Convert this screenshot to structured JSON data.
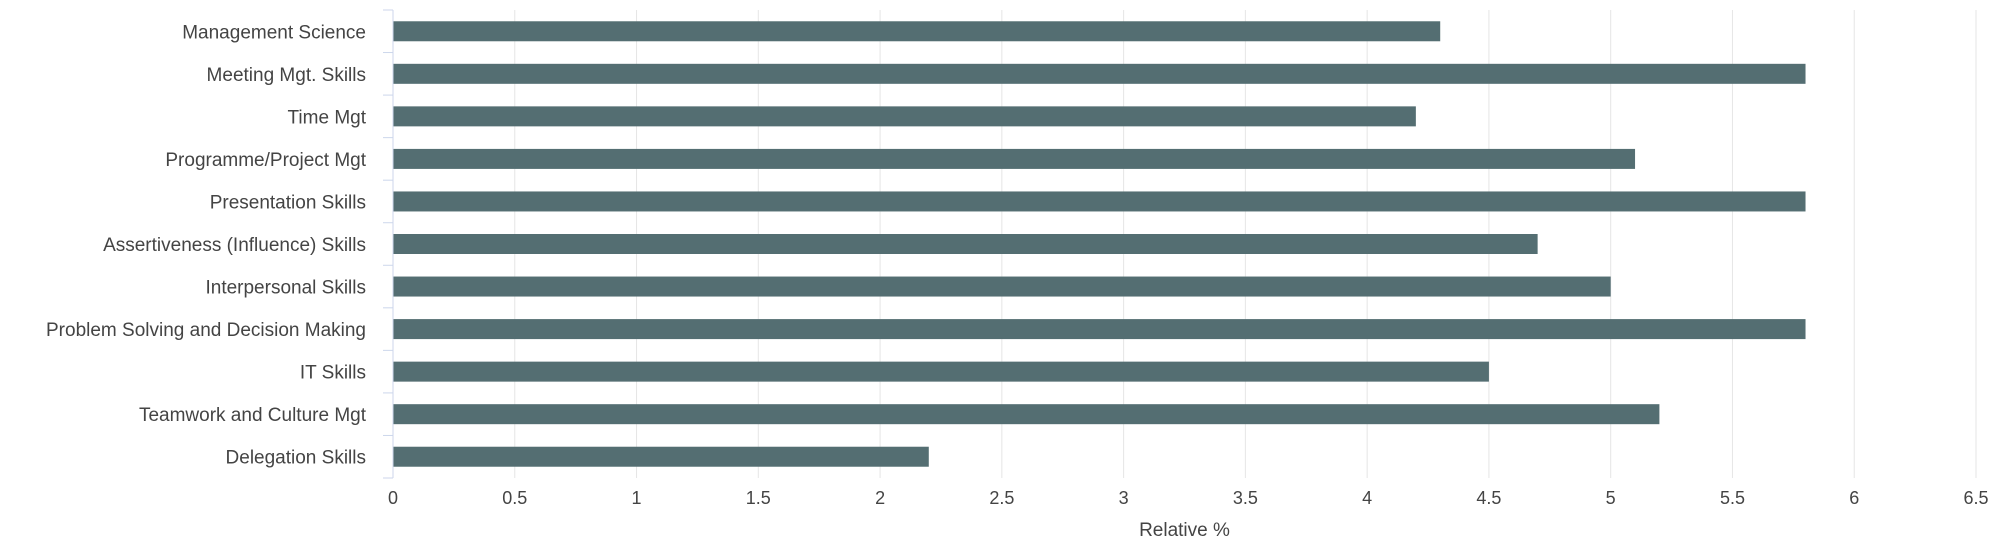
{
  "chart_data": {
    "type": "bar",
    "orientation": "horizontal",
    "categories": [
      "Management Science",
      "Meeting Mgt. Skills",
      "Time Mgt",
      "Programme/Project Mgt",
      "Presentation Skills",
      "Assertiveness (Influence) Skills",
      "Interpersonal Skills",
      "Problem Solving and Decision Making",
      "IT Skills",
      "Teamwork and Culture Mgt",
      "Delegation Skills"
    ],
    "values": [
      4.3,
      5.8,
      4.2,
      5.1,
      5.8,
      4.7,
      5.0,
      5.8,
      4.5,
      5.2,
      2.2
    ],
    "title": "",
    "xlabel": "Relative %",
    "ylabel": "",
    "xlim": [
      0,
      6.5
    ],
    "xticks": [
      "0",
      "0.5",
      "1",
      "1.5",
      "2",
      "2.5",
      "3",
      "3.5",
      "4",
      "4.5",
      "5",
      "5.5",
      "6",
      "6.5"
    ],
    "grid": true,
    "legend": "none",
    "colors": {
      "bar": "#546e72",
      "grid": "#e6e6e6",
      "axis": "#ccd6eb",
      "text": "#444444"
    }
  }
}
